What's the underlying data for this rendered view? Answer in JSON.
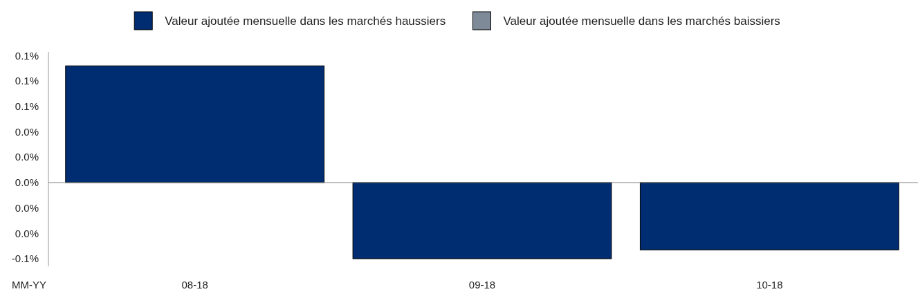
{
  "chart_data": {
    "type": "bar",
    "xlabel": "MM-YY",
    "categories": [
      "08-18",
      "09-18",
      "10-18"
    ],
    "series": [
      {
        "name": "Valeur ajoutée mensuelle dans les marchés haussiers",
        "color": "#002d72",
        "values": [
          0.092,
          -0.06,
          -0.053
        ]
      },
      {
        "name": "Valeur ajoutée mensuelle dans les marchés baissiers",
        "color": "#7f8a99",
        "values": [
          null,
          null,
          null
        ]
      }
    ],
    "ylim": [
      -0.066,
      0.103
    ],
    "yticks": [
      {
        "value": -0.06,
        "label": "-0.1%"
      },
      {
        "value": -0.04,
        "label": "0.0%"
      },
      {
        "value": -0.02,
        "label": "0.0%"
      },
      {
        "value": 0,
        "label": "0.0%"
      },
      {
        "value": 0.02,
        "label": "0.0%"
      },
      {
        "value": 0.04,
        "label": "0.0%"
      },
      {
        "value": 0.06,
        "label": "0.1%"
      },
      {
        "value": 0.08,
        "label": "0.1%"
      },
      {
        "value": 0.1,
        "label": "0.1%"
      }
    ],
    "legend": "top"
  }
}
